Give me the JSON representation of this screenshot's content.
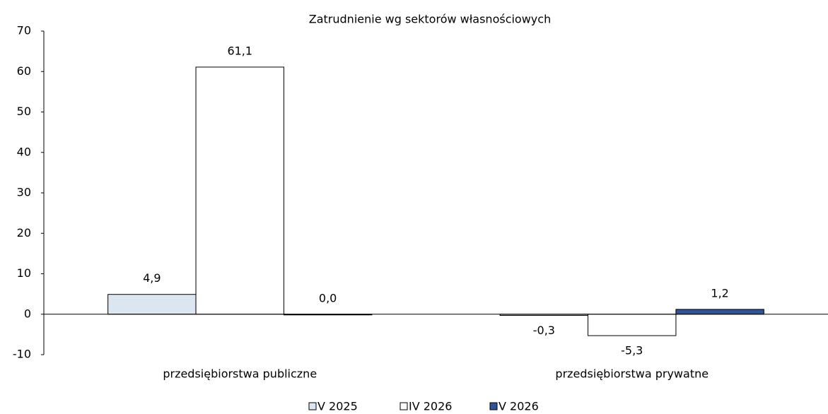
{
  "chart_data": {
    "type": "bar",
    "title": "Zatrudnienie wg sektorów własnościowych",
    "categories": [
      "przedsiębiorstwa publiczne",
      "przedsiębiorstwa prywatne"
    ],
    "series": [
      {
        "name": "V 2025",
        "color": "#dce6f1",
        "values": [
          4.9,
          -0.3
        ],
        "value_labels": [
          "4,9",
          "-0,3"
        ]
      },
      {
        "name": "IV 2026",
        "color": "#ffffff",
        "values": [
          61.1,
          -5.3
        ],
        "value_labels": [
          "61,1",
          "-5,3"
        ]
      },
      {
        "name": "V 2026",
        "color": "#2f5597",
        "values": [
          0.0,
          1.2
        ],
        "value_labels": [
          "0,0",
          "1,2"
        ]
      }
    ],
    "ylim": [
      -10,
      70
    ],
    "yticks": [
      -10,
      0,
      10,
      20,
      30,
      40,
      50,
      60,
      70
    ],
    "grid": false,
    "legend": "bottom"
  }
}
